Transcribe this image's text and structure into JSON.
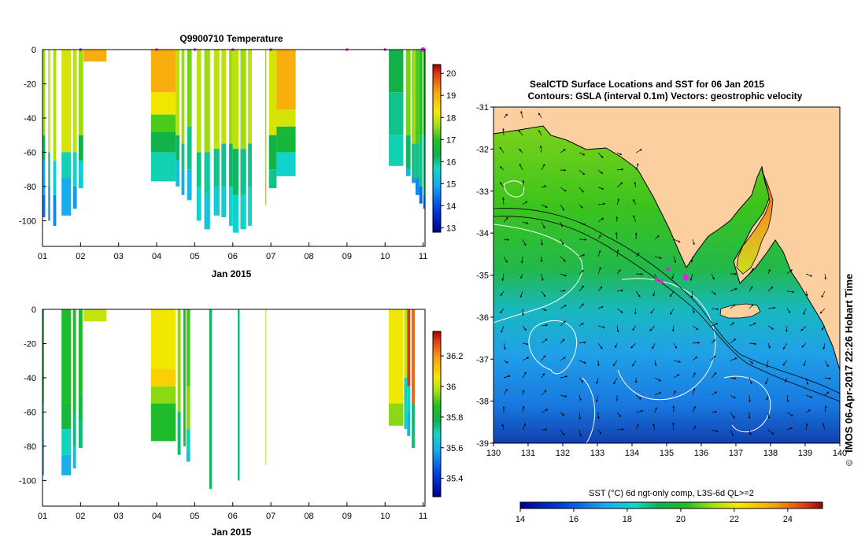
{
  "chart_data": [
    {
      "type": "heatmap",
      "title": "Q9900710  Temperature",
      "xlabel": "Jan 2015",
      "ylabel": "",
      "xlim": [
        1,
        11.05
      ],
      "ylim": [
        -115,
        0
      ],
      "x_ticks": [
        "01",
        "02",
        "03",
        "04",
        "05",
        "06",
        "07",
        "08",
        "09",
        "10",
        "11"
      ],
      "y_ticks": [
        "0",
        "-20",
        "-40",
        "-60",
        "-80",
        "-100"
      ],
      "y_tick_values": [
        0,
        -20,
        -40,
        -60,
        -80,
        -100
      ],
      "colorbar": {
        "min": 12.8,
        "max": 20.4,
        "ticks": [
          "13",
          "14",
          "15",
          "16",
          "17",
          "18",
          "19",
          "20"
        ],
        "tick_values": [
          13,
          14,
          15,
          16,
          17,
          18,
          19,
          20
        ]
      },
      "profile_markers_day": [
        2.0,
        4.0,
        5.0,
        6.0,
        7.0,
        9.0,
        10.0,
        11.0
      ],
      "profiles": [
        {
          "x": 1.0,
          "w": 0.07,
          "depth": 98,
          "layers": [
            [
              0,
              17.6
            ],
            [
              50,
              16.2
            ],
            [
              65,
              15.0
            ],
            [
              85,
              14.4
            ]
          ]
        },
        {
          "x": 1.15,
          "w": 0.05,
          "depth": 100,
          "layers": [
            [
              0,
              17.8
            ],
            [
              60,
              16.0
            ],
            [
              80,
              14.7
            ]
          ]
        },
        {
          "x": 1.28,
          "w": 0.08,
          "depth": 103,
          "layers": [
            [
              0,
              17.7
            ],
            [
              65,
              15.5
            ],
            [
              85,
              14.6
            ]
          ]
        },
        {
          "x": 1.5,
          "w": 0.25,
          "depth": 97,
          "layers": [
            [
              0,
              18.0
            ],
            [
              60,
              15.8
            ],
            [
              75,
              15.0
            ]
          ]
        },
        {
          "x": 1.8,
          "w": 0.1,
          "depth": 93,
          "layers": [
            [
              0,
              17.8
            ],
            [
              60,
              15.6
            ],
            [
              80,
              14.8
            ]
          ]
        },
        {
          "x": 1.95,
          "w": 0.12,
          "depth": 81,
          "layers": [
            [
              0,
              17.6
            ],
            [
              50,
              16.4
            ],
            [
              65,
              15.5
            ]
          ]
        },
        {
          "x": 2.08,
          "w": 0.6,
          "depth": 7,
          "layers": [
            [
              0,
              19.0
            ]
          ]
        },
        {
          "x": 3.85,
          "w": 0.65,
          "depth": 77,
          "layers": [
            [
              0,
              19.0
            ],
            [
              25,
              18.2
            ],
            [
              38,
              17.2
            ],
            [
              48,
              16.4
            ],
            [
              60,
              15.8
            ]
          ]
        },
        {
          "x": 4.5,
          "w": 0.1,
          "depth": 80,
          "layers": [
            [
              0,
              17.8
            ],
            [
              50,
              16.2
            ],
            [
              65,
              15.3
            ]
          ]
        },
        {
          "x": 4.65,
          "w": 0.08,
          "depth": 85,
          "layers": [
            [
              0,
              17.6
            ],
            [
              55,
              16.0
            ],
            [
              70,
              15.0
            ]
          ]
        },
        {
          "x": 4.8,
          "w": 0.12,
          "depth": 88,
          "layers": [
            [
              0,
              17.4
            ],
            [
              45,
              16.0
            ],
            [
              70,
              15.2
            ]
          ]
        },
        {
          "x": 5.05,
          "w": 0.12,
          "depth": 100,
          "layers": [
            [
              0,
              17.8
            ],
            [
              60,
              16.0
            ],
            [
              80,
              15.6
            ]
          ]
        },
        {
          "x": 5.25,
          "w": 0.15,
          "depth": 105,
          "layers": [
            [
              0,
              17.6
            ],
            [
              60,
              15.9
            ],
            [
              85,
              15.4
            ]
          ]
        },
        {
          "x": 5.5,
          "w": 0.15,
          "depth": 97,
          "layers": [
            [
              0,
              17.8
            ],
            [
              58,
              16.0
            ],
            [
              80,
              15.5
            ]
          ]
        },
        {
          "x": 5.7,
          "w": 0.12,
          "depth": 98,
          "layers": [
            [
              0,
              17.8
            ],
            [
              55,
              16.0
            ],
            [
              80,
              15.5
            ]
          ]
        },
        {
          "x": 5.9,
          "w": 0.1,
          "depth": 103,
          "layers": [
            [
              0,
              17.6
            ],
            [
              55,
              16.2
            ],
            [
              80,
              15.6
            ]
          ]
        },
        {
          "x": 6.0,
          "w": 0.15,
          "depth": 107,
          "layers": [
            [
              0,
              17.8
            ],
            [
              58,
              16.2
            ],
            [
              85,
              15.6
            ]
          ]
        },
        {
          "x": 6.2,
          "w": 0.15,
          "depth": 105,
          "layers": [
            [
              0,
              17.6
            ],
            [
              58,
              16.0
            ],
            [
              85,
              15.6
            ]
          ]
        },
        {
          "x": 6.4,
          "w": 0.1,
          "depth": 103,
          "layers": [
            [
              0,
              17.8
            ],
            [
              55,
              16.0
            ],
            [
              80,
              15.6
            ]
          ]
        },
        {
          "x": 6.85,
          "w": 0.03,
          "depth": 91,
          "layers": [
            [
              0,
              17.6
            ]
          ]
        },
        {
          "x": 6.95,
          "w": 0.2,
          "depth": 81,
          "layers": [
            [
              0,
              18.0
            ],
            [
              50,
              16.4
            ],
            [
              70,
              16.0
            ]
          ]
        },
        {
          "x": 7.15,
          "w": 0.5,
          "depth": 74,
          "layers": [
            [
              0,
              19.0
            ],
            [
              35,
              18.0
            ],
            [
              45,
              16.6
            ],
            [
              60,
              15.6
            ]
          ]
        },
        {
          "x": 10.1,
          "w": 0.38,
          "depth": 68,
          "layers": [
            [
              0,
              16.4
            ],
            [
              25,
              16.0
            ],
            [
              50,
              15.8
            ]
          ]
        },
        {
          "x": 10.55,
          "w": 0.12,
          "depth": 74,
          "layers": [
            [
              0,
              17.4
            ],
            [
              50,
              16.2
            ],
            [
              70,
              15.2
            ]
          ]
        },
        {
          "x": 10.7,
          "w": 0.1,
          "depth": 78,
          "layers": [
            [
              0,
              17.6
            ],
            [
              55,
              16.0
            ],
            [
              75,
              14.8
            ]
          ]
        },
        {
          "x": 10.8,
          "w": 0.1,
          "depth": 85,
          "layers": [
            [
              0,
              17.2
            ],
            [
              55,
              16.0
            ],
            [
              75,
              14.6
            ]
          ]
        },
        {
          "x": 10.9,
          "w": 0.08,
          "depth": 90,
          "layers": [
            [
              0,
              17.0
            ],
            [
              50,
              16.0
            ],
            [
              80,
              14.3
            ]
          ]
        },
        {
          "x": 11.0,
          "w": 0.06,
          "depth": 93,
          "layers": [
            [
              0,
              16.8
            ],
            [
              50,
              16.0
            ],
            [
              85,
              14.5
            ]
          ]
        }
      ]
    },
    {
      "type": "heatmap",
      "title": "",
      "xlabel": "Jan 2015",
      "ylabel": "",
      "xlim": [
        1,
        11.05
      ],
      "ylim": [
        -115,
        0
      ],
      "x_ticks": [
        "01",
        "02",
        "03",
        "04",
        "05",
        "06",
        "07",
        "08",
        "09",
        "10",
        "11"
      ],
      "y_ticks": [
        "0",
        "-20",
        "-40",
        "-60",
        "-80",
        "-100"
      ],
      "y_tick_values": [
        0,
        -20,
        -40,
        -60,
        -80,
        -100
      ],
      "colorbar": {
        "min": 35.28,
        "max": 36.36,
        "ticks": [
          "35.4",
          "35.6",
          "35.8",
          "36",
          "36.2"
        ],
        "tick_values": [
          35.4,
          35.6,
          35.8,
          36,
          36.2
        ]
      },
      "profiles": [
        {
          "x": 1.0,
          "w": 0.04,
          "depth": 97,
          "layers": [
            [
              0,
              35.82
            ],
            [
              55,
              35.7
            ],
            [
              75,
              35.6
            ]
          ]
        },
        {
          "x": 1.5,
          "w": 0.25,
          "depth": 97,
          "layers": [
            [
              0,
              35.85
            ],
            [
              55,
              35.82
            ],
            [
              70,
              35.7
            ],
            [
              85,
              35.6
            ]
          ]
        },
        {
          "x": 1.8,
          "w": 0.08,
          "depth": 93,
          "layers": [
            [
              0,
              35.85
            ],
            [
              60,
              35.75
            ],
            [
              80,
              35.62
            ]
          ]
        },
        {
          "x": 1.95,
          "w": 0.1,
          "depth": 81,
          "layers": [
            [
              0,
              35.85
            ],
            [
              50,
              35.8
            ],
            [
              65,
              35.75
            ]
          ]
        },
        {
          "x": 2.08,
          "w": 0.6,
          "depth": 7,
          "layers": [
            [
              0,
              36.0
            ]
          ]
        },
        {
          "x": 3.85,
          "w": 0.65,
          "depth": 77,
          "layers": [
            [
              0,
              36.05
            ],
            [
              35,
              36.1
            ],
            [
              45,
              35.95
            ],
            [
              55,
              35.85
            ]
          ]
        },
        {
          "x": 4.55,
          "w": 0.08,
          "depth": 85,
          "layers": [
            [
              0,
              35.95
            ],
            [
              60,
              35.75
            ]
          ]
        },
        {
          "x": 4.7,
          "w": 0.06,
          "depth": 80,
          "layers": [
            [
              0,
              35.85
            ]
          ]
        },
        {
          "x": 4.78,
          "w": 0.1,
          "depth": 89,
          "layers": [
            [
              0,
              35.9
            ],
            [
              45,
              35.95
            ],
            [
              70,
              35.7
            ],
            [
              82,
              35.65
            ]
          ]
        },
        {
          "x": 5.38,
          "w": 0.07,
          "depth": 105,
          "layers": [
            [
              0,
              35.76
            ]
          ]
        },
        {
          "x": 6.13,
          "w": 0.05,
          "depth": 100,
          "layers": [
            [
              0,
              35.75
            ]
          ]
        },
        {
          "x": 6.85,
          "w": 0.03,
          "depth": 91,
          "layers": [
            [
              0,
              36.05
            ]
          ]
        },
        {
          "x": 10.1,
          "w": 0.38,
          "depth": 68,
          "layers": [
            [
              0,
              36.05
            ],
            [
              55,
              35.95
            ]
          ]
        },
        {
          "x": 10.5,
          "w": 0.08,
          "depth": 70,
          "layers": [
            [
              0,
              36.0
            ],
            [
              40,
              35.7
            ]
          ]
        },
        {
          "x": 10.58,
          "w": 0.08,
          "depth": 74,
          "layers": [
            [
              0,
              36.3
            ],
            [
              45,
              35.7
            ],
            [
              60,
              35.6
            ]
          ]
        },
        {
          "x": 10.7,
          "w": 0.08,
          "depth": 81,
          "layers": [
            [
              0,
              36.25
            ],
            [
              55,
              35.75
            ]
          ]
        }
      ]
    },
    {
      "type": "heatmap",
      "title": "SealCTD Surface Locations and SST for 06 Jan 2015",
      "subtitle": "Contours: GSLA (interval 0.1m) Vectors: geostrophic velocity",
      "xlabel": "",
      "ylabel": "",
      "xlim": [
        130,
        140
      ],
      "ylim": [
        -39,
        -31
      ],
      "x_ticks": [
        "130",
        "131",
        "132",
        "133",
        "134",
        "135",
        "136",
        "137",
        "138",
        "139",
        "140"
      ],
      "x_tick_values": [
        130,
        131,
        132,
        133,
        134,
        135,
        136,
        137,
        138,
        139,
        140
      ],
      "y_ticks": [
        "-31",
        "-32",
        "-33",
        "-34",
        "-35",
        "-36",
        "-37",
        "-38",
        "-39"
      ],
      "y_tick_values": [
        -31,
        -32,
        -33,
        -34,
        -35,
        -36,
        -37,
        -38,
        -39
      ],
      "colorbar": {
        "label": "SST (°C) 6d ngt-only comp, L3S-6d QL>=2",
        "min": 14,
        "max": 25.3,
        "ticks": [
          "14",
          "16",
          "18",
          "20",
          "22",
          "24"
        ],
        "tick_values": [
          14,
          16,
          18,
          20,
          22,
          24
        ]
      },
      "seal_positions": [
        [
          134.7,
          -35.1
        ],
        [
          134.85,
          -35.15
        ],
        [
          135.05,
          -34.85
        ],
        [
          135.55,
          -35.05
        ]
      ],
      "credit": "IMOS 06-Apr-2017 22:26 Hobart Time"
    }
  ],
  "colors": {
    "land": "#fbcf9e",
    "marker": "#d62ad6",
    "contour": "#ffffff",
    "coast": "#000000"
  }
}
